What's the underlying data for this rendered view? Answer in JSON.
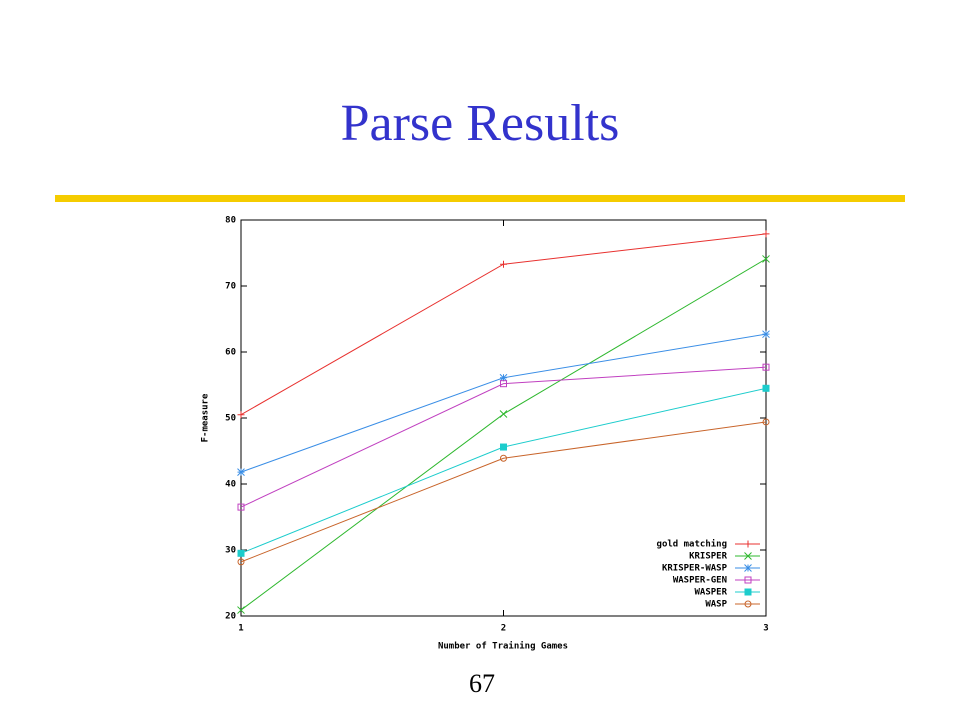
{
  "title": "Parse Results",
  "page_number": "67",
  "chart_data": {
    "type": "line",
    "xlabel": "Number of Training Games",
    "ylabel": "F-measure",
    "x": [
      1,
      2,
      3
    ],
    "xlim": [
      1,
      3
    ],
    "xticks": [
      1,
      2,
      3
    ],
    "ylim": [
      20,
      80
    ],
    "yticks": [
      20,
      30,
      40,
      50,
      60,
      70,
      80
    ],
    "legend": "bottom-right",
    "series": [
      {
        "name": "gold matching",
        "color": "#e8312f",
        "marker": "plus",
        "values": [
          50.5,
          73.3,
          77.9
        ]
      },
      {
        "name": "KRISPER",
        "color": "#2fb82f",
        "marker": "cross",
        "values": [
          20.9,
          50.6,
          74.1
        ]
      },
      {
        "name": "KRISPER-WASP",
        "color": "#3a8ee6",
        "marker": "star",
        "values": [
          41.8,
          56.1,
          62.7
        ]
      },
      {
        "name": "WASPER-GEN",
        "color": "#c040c0",
        "marker": "open-square",
        "values": [
          36.5,
          55.2,
          57.7
        ]
      },
      {
        "name": "WASPER",
        "color": "#1ccccc",
        "marker": "filled-square",
        "values": [
          29.5,
          45.6,
          54.5
        ]
      },
      {
        "name": "WASP",
        "color": "#c8642a",
        "marker": "open-circle",
        "values": [
          28.2,
          43.9,
          49.4
        ]
      }
    ]
  }
}
